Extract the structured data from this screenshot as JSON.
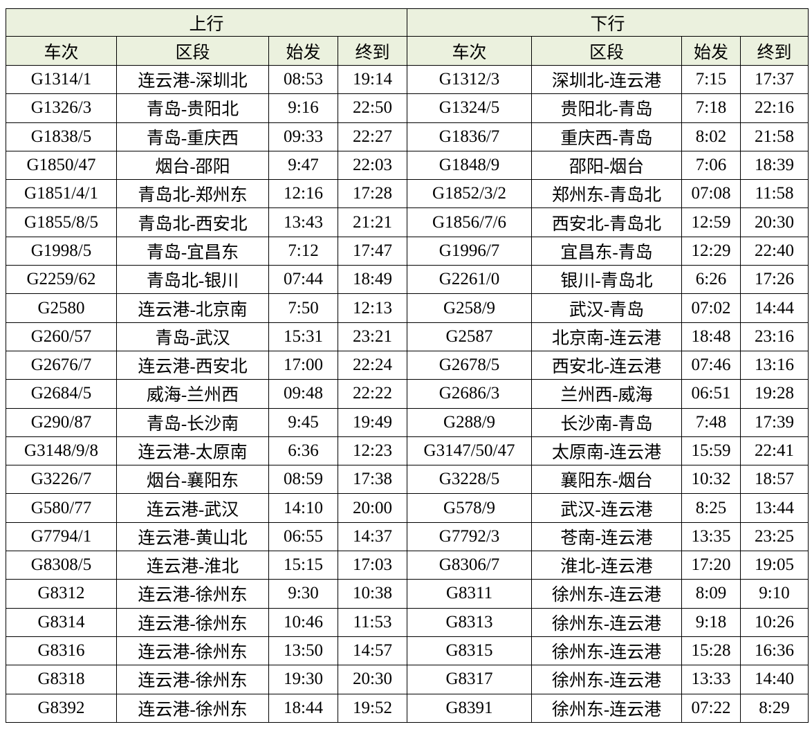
{
  "header": {
    "groups": [
      "上行",
      "下行"
    ],
    "columns": [
      "车次",
      "区段",
      "始发",
      "终到",
      "车次",
      "区段",
      "始发",
      "终到"
    ]
  },
  "table": {
    "rows": [
      [
        "G1314/1",
        "连云港-深圳北",
        "08:53",
        "19:14",
        "G1312/3",
        "深圳北-连云港",
        "7:15",
        "17:37"
      ],
      [
        "G1326/3",
        "青岛-贵阳北",
        "9:16",
        "22:50",
        "G1324/5",
        "贵阳北-青岛",
        "7:18",
        "22:16"
      ],
      [
        "G1838/5",
        "青岛-重庆西",
        "09:33",
        "22:27",
        "G1836/7",
        "重庆西-青岛",
        "8:02",
        "21:58"
      ],
      [
        "G1850/47",
        "烟台-邵阳",
        "9:47",
        "22:03",
        "G1848/9",
        "邵阳-烟台",
        "7:06",
        "18:39"
      ],
      [
        "G1851/4/1",
        "青岛北-郑州东",
        "12:16",
        "17:28",
        "G1852/3/2",
        "郑州东-青岛北",
        "07:08",
        "11:58"
      ],
      [
        "G1855/8/5",
        "青岛北-西安北",
        "13:43",
        "21:21",
        "G1856/7/6",
        "西安北-青岛北",
        "12:59",
        "20:30"
      ],
      [
        "G1998/5",
        "青岛-宜昌东",
        "7:12",
        "17:47",
        "G1996/7",
        "宜昌东-青岛",
        "12:29",
        "22:40"
      ],
      [
        "G2259/62",
        "青岛北-银川",
        "07:44",
        "18:49",
        "G2261/0",
        "银川-青岛北",
        "6:26",
        "17:26"
      ],
      [
        "G2580",
        "连云港-北京南",
        "7:50",
        "12:13",
        "G258/9",
        "武汉-青岛",
        "07:02",
        "14:44"
      ],
      [
        "G260/57",
        "青岛-武汉",
        "15:31",
        "23:21",
        "G2587",
        "北京南-连云港",
        "18:48",
        "23:16"
      ],
      [
        "G2676/7",
        "连云港-西安北",
        "17:00",
        "22:24",
        "G2678/5",
        "西安北-连云港",
        "07:46",
        "13:16"
      ],
      [
        "G2684/5",
        "威海-兰州西",
        "09:48",
        "22:22",
        "G2686/3",
        "兰州西-威海",
        "06:51",
        "19:28"
      ],
      [
        "G290/87",
        "青岛-长沙南",
        "9:45",
        "19:49",
        "G288/9",
        "长沙南-青岛",
        "7:48",
        "17:39"
      ],
      [
        "G3148/9/8",
        "连云港-太原南",
        "6:36",
        "12:23",
        "G3147/50/47",
        "太原南-连云港",
        "15:59",
        "22:41"
      ],
      [
        "G3226/7",
        "烟台-襄阳东",
        "08:59",
        "17:38",
        "G3228/5",
        "襄阳东-烟台",
        "10:32",
        "18:57"
      ],
      [
        "G580/77",
        "连云港-武汉",
        "14:10",
        "20:00",
        "G578/9",
        "武汉-连云港",
        "8:25",
        "13:44"
      ],
      [
        "G7794/1",
        "连云港-黄山北",
        "06:55",
        "14:37",
        "G7792/3",
        "苍南-连云港",
        "13:35",
        "23:25"
      ],
      [
        "G8308/5",
        "连云港-淮北",
        "15:15",
        "17:03",
        "G8306/7",
        "淮北-连云港",
        "17:20",
        "19:05"
      ],
      [
        "G8312",
        "连云港-徐州东",
        "9:30",
        "10:38",
        "G8311",
        "徐州东-连云港",
        "8:09",
        "9:10"
      ],
      [
        "G8314",
        "连云港-徐州东",
        "10:46",
        "11:53",
        "G8313",
        "徐州东-连云港",
        "9:18",
        "10:26"
      ],
      [
        "G8316",
        "连云港-徐州东",
        "13:50",
        "14:57",
        "G8315",
        "徐州东-连云港",
        "15:28",
        "16:36"
      ],
      [
        "G8318",
        "连云港-徐州东",
        "19:30",
        "20:30",
        "G8317",
        "徐州东-连云港",
        "13:33",
        "14:40"
      ],
      [
        "G8392",
        "连云港-徐州东",
        "18:44",
        "19:52",
        "G8391",
        "徐州东-连云港",
        "07:22",
        "8:29"
      ]
    ]
  }
}
